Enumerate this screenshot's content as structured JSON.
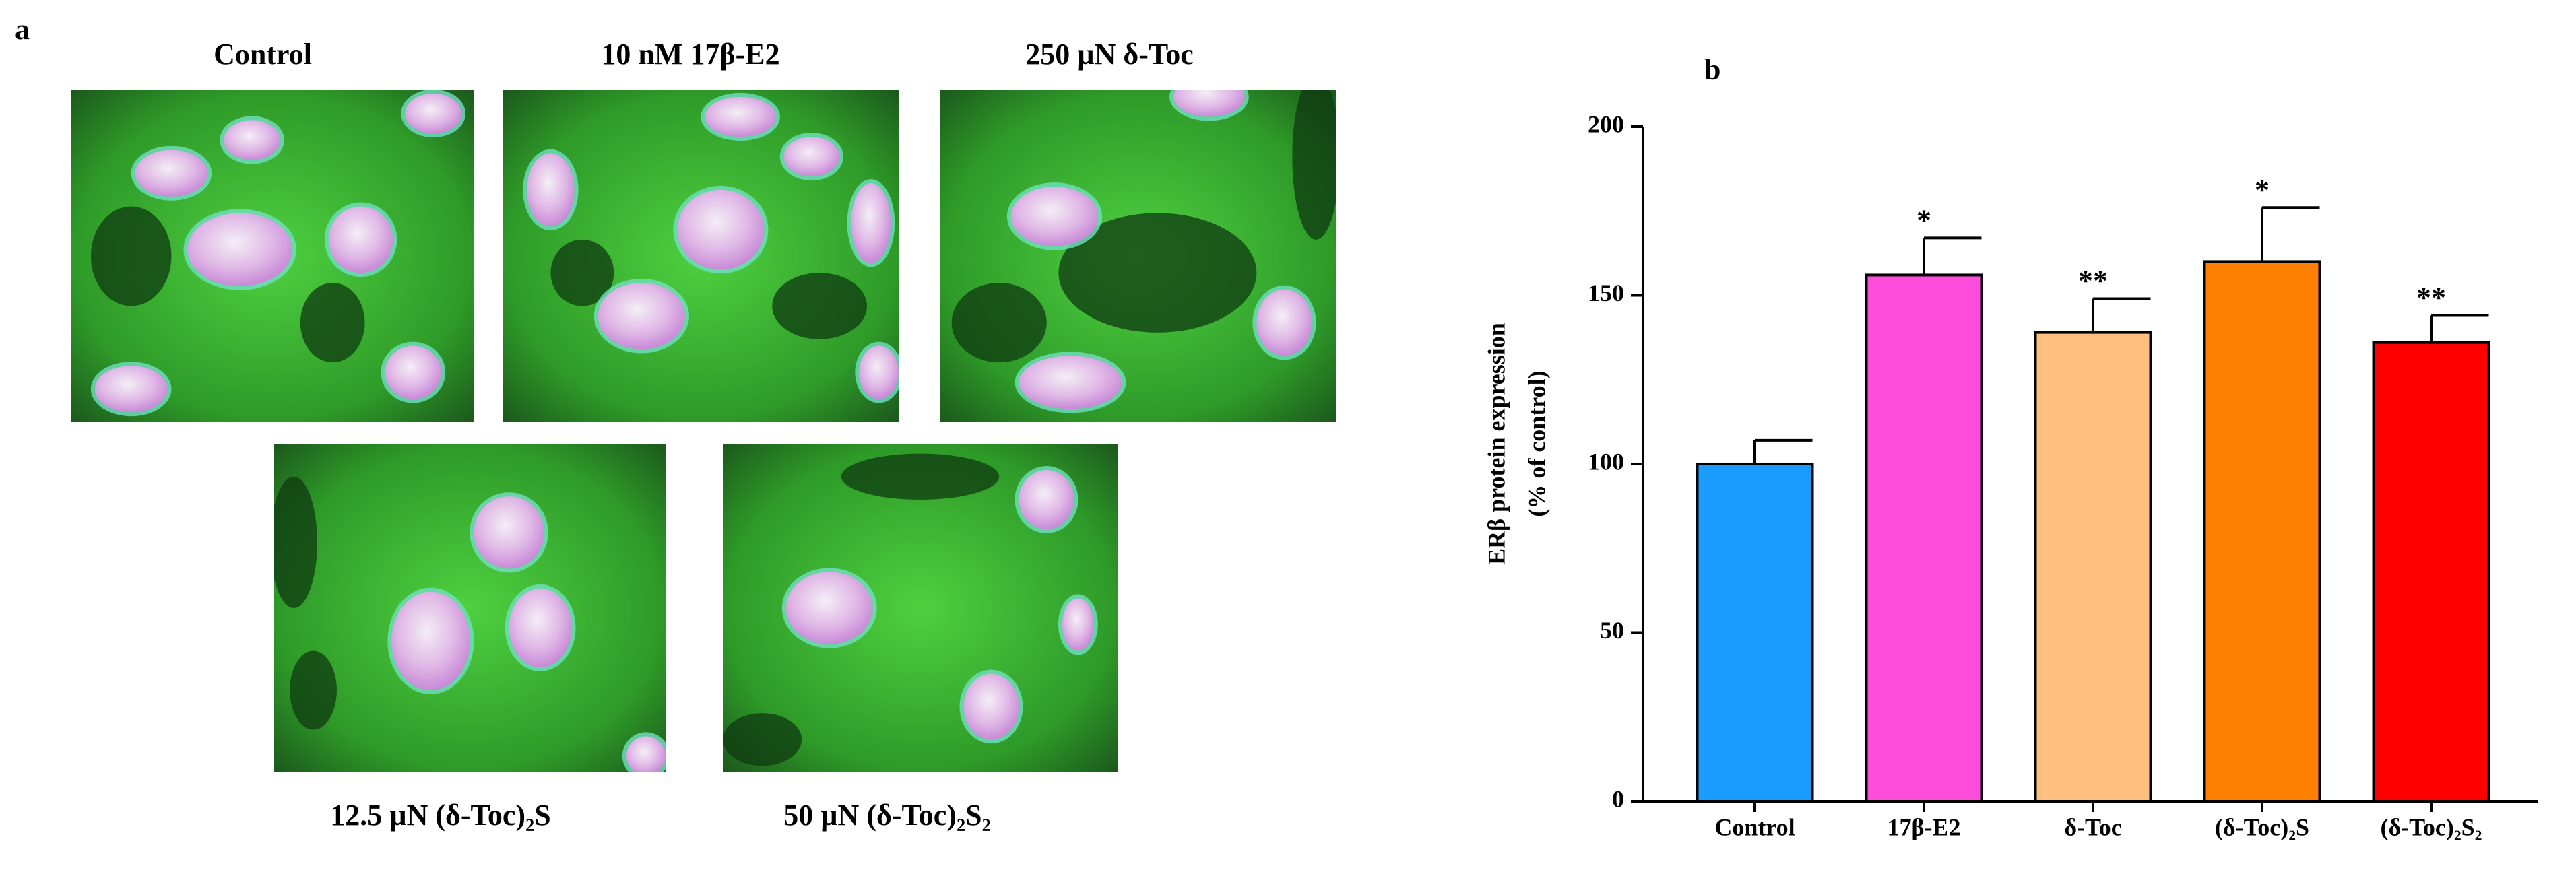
{
  "panel_a": {
    "panel_label": "a",
    "image_labels": [
      "Control",
      "10 nM 17β-E2",
      "250 µN δ-Toc",
      "12.5 µN (δ-Toc)₂S",
      "50 µN (δ-Toc)₂S₂"
    ]
  },
  "chart_data": {
    "type": "bar",
    "panel_label": "b",
    "ylabel": [
      "ERβ protein expression",
      "(% of control)"
    ],
    "categories": [
      "Control",
      "17β-E2",
      "δ-Toc",
      "(δ-Toc)₂S",
      "(δ-Toc)₂S₂"
    ],
    "values": [
      100,
      156,
      139,
      160,
      136
    ],
    "errors": [
      7,
      11,
      10,
      16,
      8
    ],
    "significance": [
      null,
      "*",
      "**",
      "*",
      "**"
    ],
    "colors": [
      "#1a9cff",
      "#ff4ddb",
      "#ffc080",
      "#ff8000",
      "#ff0000"
    ],
    "ylim": [
      0,
      200
    ],
    "yticks": [
      0,
      50,
      100,
      150,
      200
    ]
  }
}
